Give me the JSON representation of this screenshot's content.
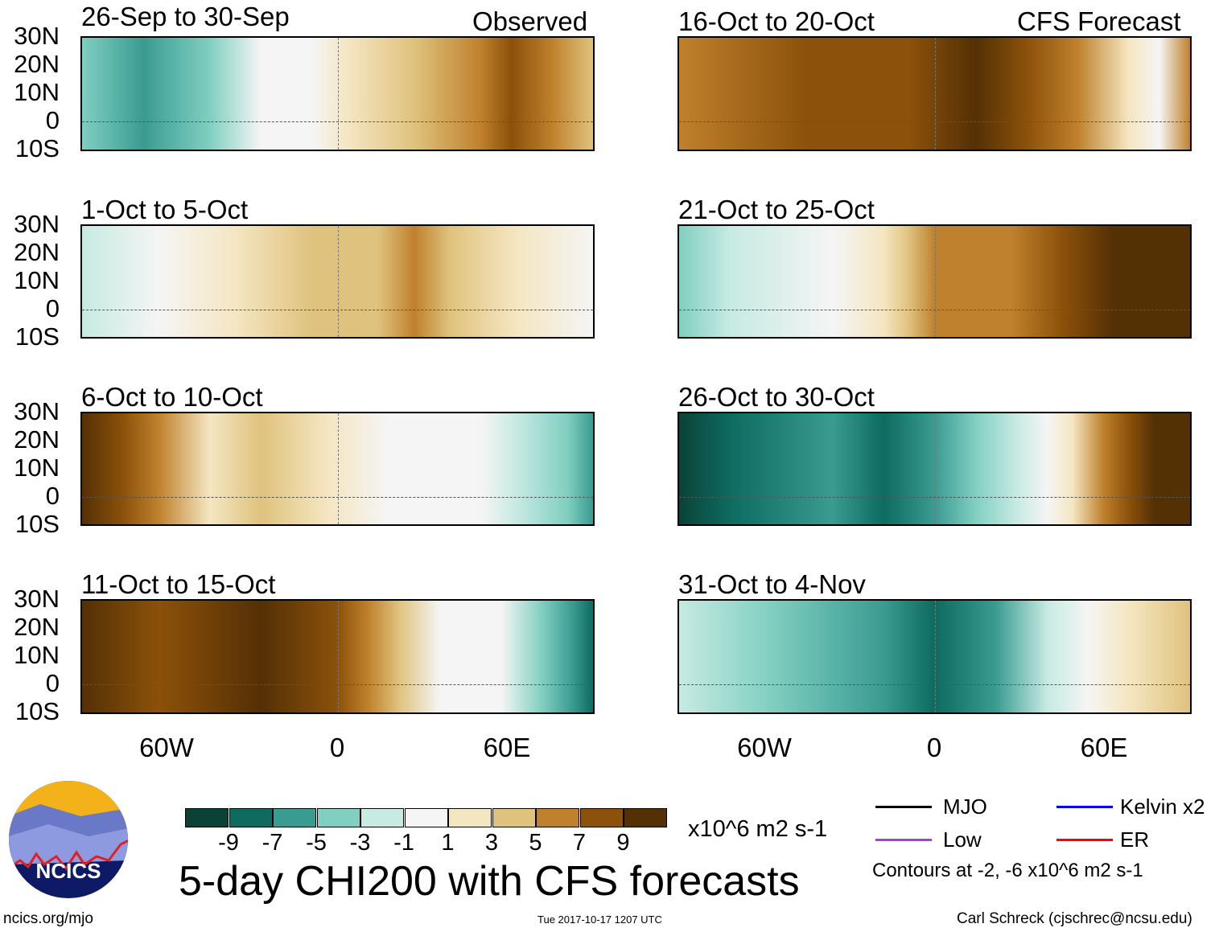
{
  "panels": {
    "left": [
      {
        "title": "26-Sep to 30-Sep",
        "tag": "Observed"
      },
      {
        "title": "1-Oct to 5-Oct"
      },
      {
        "title": "6-Oct to 10-Oct"
      },
      {
        "title": "11-Oct to 15-Oct"
      }
    ],
    "right": [
      {
        "title": "16-Oct to 20-Oct",
        "tag": "CFS Forecast"
      },
      {
        "title": "21-Oct to 25-Oct"
      },
      {
        "title": "26-Oct to 30-Oct"
      },
      {
        "title": "31-Oct to 4-Nov"
      }
    ]
  },
  "lat_labels": [
    "30N",
    "20N",
    "10N",
    "0",
    "10S"
  ],
  "lon_labels": [
    "60W",
    "0",
    "60E"
  ],
  "colorbar": {
    "colors": [
      "#0b4238",
      "#0d6b60",
      "#3a9b91",
      "#80cfc1",
      "#c7eae2",
      "#f5f5f5",
      "#f5e6c2",
      "#dfc27d",
      "#bf812d",
      "#8c510a",
      "#543005"
    ],
    "labels": [
      "-9",
      "-7",
      "-5",
      "-3",
      "-1",
      "1",
      "3",
      "5",
      "7",
      "9"
    ],
    "units": "x10^6 m2 s-1"
  },
  "title": "5-day CHI200 with CFS forecasts",
  "legend": {
    "mjo": {
      "label": "MJO",
      "color": "#000000"
    },
    "kelvin": {
      "label": "Kelvin x2",
      "color": "#0000ff"
    },
    "low": {
      "label": "Low",
      "color": "#a040e0"
    },
    "er": {
      "label": "ER",
      "color": "#ff0000"
    },
    "contours": "Contours at -2, -6 x10^6 m2 s-1"
  },
  "logo": {
    "text": "NCICS"
  },
  "footer": {
    "url": "ncics.org/mjo",
    "timestamp": "Tue 2017-10-17 1207 UTC",
    "author": "Carl Schreck (cjschrec@ncsu.edu)"
  }
}
